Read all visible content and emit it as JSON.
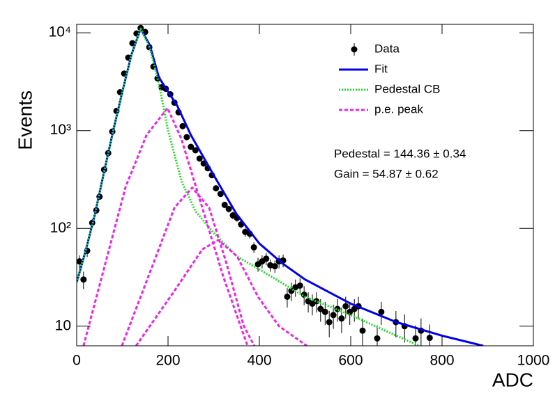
{
  "chart_data": {
    "type": "line",
    "x_label": "ADC",
    "y_label": "Events",
    "log_y": true,
    "xlim": [
      0,
      1000
    ],
    "xticks": [
      0,
      200,
      400,
      600,
      800,
      1000
    ],
    "ylim": [
      6.3,
      12200
    ],
    "yticks": [
      {
        "value": 10,
        "label": "10"
      },
      {
        "value": 100,
        "label": "10²"
      },
      {
        "value": 1000,
        "label": "10³"
      },
      {
        "value": 10000,
        "label": "10⁴"
      }
    ],
    "annotations": [
      "Pedestal = 144.36 ± 0.34",
      "Gain = 54.87 ± 0.62"
    ],
    "series": [
      {
        "name": "Data",
        "color": "#000000",
        "mode": "markers",
        "x": [
          6,
          15,
          23,
          34,
          43,
          50,
          60,
          69,
          78,
          87,
          95,
          104,
          113,
          122,
          131,
          140,
          150,
          159,
          168,
          177,
          186,
          195,
          205,
          214,
          223,
          232,
          241,
          250,
          260,
          269,
          278,
          287,
          296,
          305,
          315,
          324,
          333,
          342,
          351,
          360,
          369,
          379,
          388,
          397,
          406,
          415,
          424,
          434,
          443,
          452,
          461,
          470,
          479,
          489,
          498,
          507,
          516,
          525,
          534,
          544,
          553,
          562,
          571,
          580,
          589,
          598,
          608,
          617,
          626,
          658,
          667,
          699,
          718,
          742,
          754,
          773
        ],
        "values": [
          46,
          30,
          59,
          114,
          153,
          211,
          399,
          589,
          977,
          1590,
          2470,
          3830,
          5570,
          7830,
          9840,
          11200,
          10200,
          7110,
          4510,
          3420,
          2770,
          2680,
          2350,
          1930,
          1540,
          1110,
          857,
          682,
          629,
          518,
          461,
          412,
          350,
          257,
          225,
          174,
          158,
          136,
          128,
          110,
          92,
          88,
          64,
          43,
          46,
          49,
          42,
          41,
          46,
          47,
          20,
          23,
          25,
          26,
          21,
          18,
          17,
          18,
          15,
          14,
          11,
          13,
          15,
          12,
          16,
          14,
          15,
          16,
          9,
          7.5,
          14,
          11,
          10,
          7.5,
          9,
          7.6
        ],
        "errors": [
          7,
          6,
          8,
          11,
          12,
          15,
          20,
          24,
          31,
          40,
          50,
          62,
          75,
          88,
          99,
          106,
          101,
          84,
          67,
          58,
          53,
          52,
          48,
          44,
          39,
          33,
          29,
          26,
          25,
          23,
          21,
          20,
          19,
          16,
          15,
          13,
          13,
          12,
          11,
          10,
          10,
          9,
          8,
          7,
          7,
          7,
          6,
          6,
          7,
          7,
          4.5,
          5,
          5,
          5,
          4.6,
          4.2,
          4.1,
          4.2,
          3.9,
          3.7,
          3.3,
          3.6,
          3.9,
          3.5,
          4,
          3.7,
          3.9,
          4,
          3,
          2.7,
          3.7,
          3.3,
          3.2,
          2.7,
          3,
          2.8
        ]
      },
      {
        "name": "Fit",
        "color": "#0000ee",
        "mode": "line",
        "dash": "solid",
        "x": [
          0,
          20,
          40,
          60,
          80,
          100,
          120,
          140,
          160,
          180,
          200,
          220,
          250,
          300,
          350,
          400,
          450,
          500,
          600,
          700,
          800,
          890
        ],
        "values": [
          28,
          60,
          140,
          380,
          1000,
          2500,
          6000,
          11000,
          7500,
          3500,
          2500,
          1800,
          900,
          350,
          140,
          70,
          44,
          30,
          17,
          11,
          8,
          6.3
        ]
      },
      {
        "name": "Pedestal CB",
        "color": "#22dd22",
        "mode": "line",
        "dash": "dotted",
        "x": [
          0,
          20,
          40,
          60,
          80,
          100,
          120,
          140,
          160,
          180,
          200,
          230,
          260,
          300,
          350,
          400,
          500,
          600,
          700,
          750
        ],
        "values": [
          28,
          60,
          140,
          380,
          1000,
          2500,
          6000,
          11000,
          7000,
          3000,
          1000,
          300,
          150,
          90,
          52,
          38,
          20,
          13,
          8,
          6.3
        ]
      },
      {
        "name": "p.e. peak",
        "color": "#ee22ee",
        "mode": "line",
        "dash": "dashed",
        "x": [
          15,
          107,
          153,
          199,
          229,
          275,
          321,
          374,
          null,
          99,
          168,
          214,
          253,
          290,
          328,
          366,
          389,
          null,
          130,
          214,
          275,
          310,
          351,
          397,
          443,
          504
        ],
        "values": [
          6.3,
          265,
          900,
          1700,
          830,
          163,
          32,
          6.3,
          null,
          6.3,
          44,
          163,
          261,
          163,
          44,
          10,
          6.3,
          null,
          6.3,
          23,
          61,
          76,
          52,
          20,
          10,
          6.3
        ]
      }
    ]
  }
}
